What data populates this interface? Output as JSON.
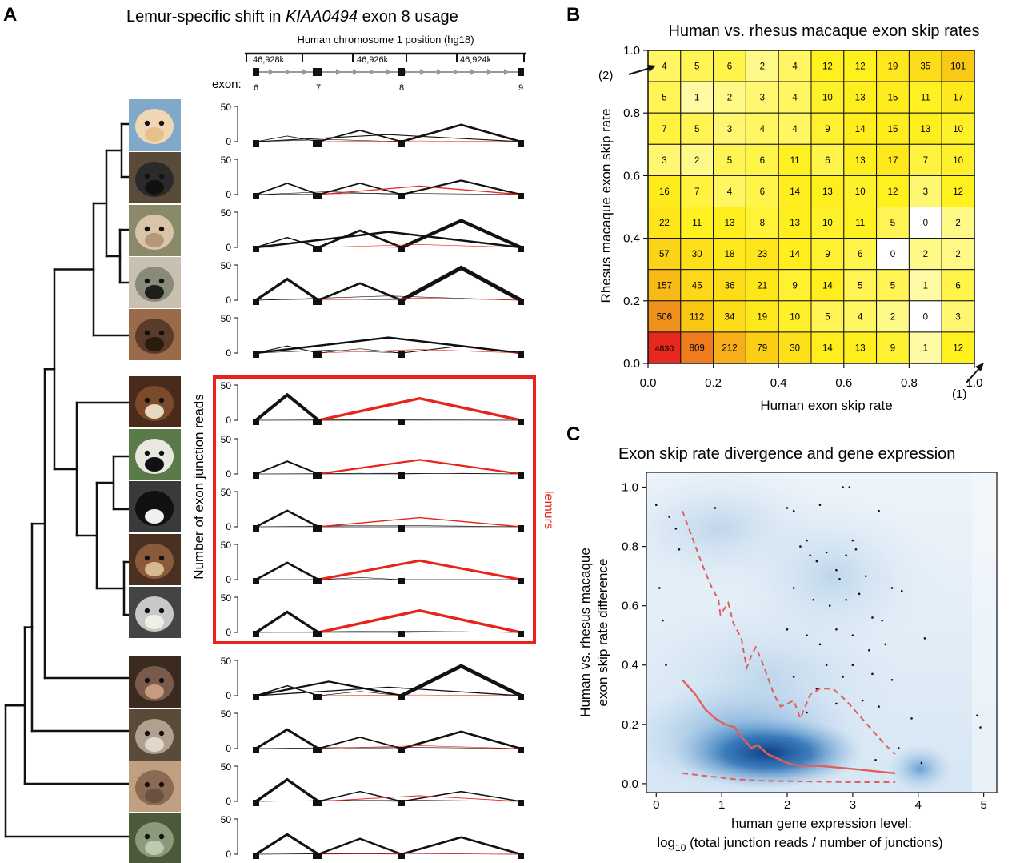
{
  "panel_a": {
    "letter": "A",
    "title_prefix": "Lemur-specific shift in ",
    "title_gene": "KIAA0494",
    "title_suffix": " exon 8 usage",
    "chrom_label": "Human chromosome 1 position (hg18)",
    "chrom_ticks": [
      "46,928k",
      "46,926k",
      "46,924k"
    ],
    "exon_prefix": "exon:",
    "exons": [
      "6",
      "7",
      "8",
      "9"
    ],
    "y_axis_label": "Number of exon junction reads",
    "y_ticks": [
      "0",
      "50"
    ],
    "lemurs_label": "lemurs",
    "species": [
      {
        "name": "human",
        "j67": 8,
        "j78": 16,
        "j89": 24,
        "j69": 10,
        "j68": 3,
        "j79": 1,
        "lemur": false
      },
      {
        "name": "chimpanzee",
        "j67": 16,
        "j78": 16,
        "j89": 20,
        "j69": 2,
        "j68": 4,
        "j79": 12,
        "lemur": false
      },
      {
        "name": "rhesus-macaque",
        "j67": 14,
        "j78": 24,
        "j89": 38,
        "j69": 22,
        "j68": 1,
        "j79": 4,
        "lemur": false
      },
      {
        "name": "vervet",
        "j67": 30,
        "j78": 24,
        "j89": 46,
        "j69": 6,
        "j68": 2,
        "j79": 3,
        "lemur": false
      },
      {
        "name": "marmoset",
        "j67": 10,
        "j78": 6,
        "j89": 10,
        "j69": 22,
        "j68": 4,
        "j79": 5,
        "lemur": false
      },
      {
        "name": "mouse-lemur",
        "j67": 36,
        "j78": 0,
        "j89": 0,
        "j69": 1,
        "j68": 0,
        "j79": 31,
        "lemur": true
      },
      {
        "name": "ruffed-lemur",
        "j67": 18,
        "j78": 1,
        "j89": 1,
        "j69": 1,
        "j68": 0,
        "j79": 20,
        "lemur": true
      },
      {
        "name": "black-white-ruffed-lemur",
        "j67": 23,
        "j78": 0,
        "j89": 0,
        "j69": 2,
        "j68": 0,
        "j79": 13,
        "lemur": true
      },
      {
        "name": "brown-lemur",
        "j67": 24,
        "j78": 3,
        "j89": 0,
        "j69": 0,
        "j68": 0,
        "j79": 27,
        "lemur": true
      },
      {
        "name": "ring-tailed-lemur",
        "j67": 29,
        "j78": 1,
        "j89": 1,
        "j69": 2,
        "j68": 0,
        "j79": 31,
        "lemur": true
      },
      {
        "name": "tree-shrew",
        "j67": 14,
        "j78": 6,
        "j89": 42,
        "j69": 12,
        "j68": 20,
        "j79": 1,
        "lemur": false
      },
      {
        "name": "mouse",
        "j67": 27,
        "j78": 16,
        "j89": 24,
        "j69": 2,
        "j68": 1,
        "j79": 4,
        "lemur": false
      },
      {
        "name": "armadillo",
        "j67": 31,
        "j78": 14,
        "j89": 14,
        "j69": 2,
        "j68": 1,
        "j79": 8,
        "lemur": false
      },
      {
        "name": "opossum",
        "j67": 28,
        "j78": 22,
        "j89": 24,
        "j69": 1,
        "j68": 1,
        "j79": 1,
        "lemur": false
      }
    ]
  },
  "panel_b": {
    "letter": "B",
    "title": "Human vs. rhesus macaque exon skip rates",
    "xlabel": "Human exon skip rate",
    "ylabel": "Rhesus macaque exon skip rate",
    "x_ticks": [
      "0.0",
      "0.2",
      "0.4",
      "0.6",
      "0.8",
      "1.0"
    ],
    "y_ticks": [
      "0.0",
      "0.2",
      "0.4",
      "0.6",
      "0.8",
      "1.0"
    ],
    "annot_1": "(1)",
    "annot_2": "(2)"
  },
  "panel_c": {
    "letter": "C",
    "title": "Exon skip rate divergence and gene expression",
    "xlabel_line1": "human gene expression level:",
    "xlabel_line2_a": "log",
    "xlabel_line2_sub": "10",
    "xlabel_line2_b": " (total junction reads / number of junctions)",
    "ylabel_line1": "Human vs. rhesus macaque",
    "ylabel_line2": "exon skip rate difference",
    "x_ticks": [
      "0",
      "1",
      "2",
      "3",
      "4",
      "5"
    ],
    "y_ticks": [
      "0.0",
      "0.2",
      "0.4",
      "0.6",
      "0.8",
      "1.0"
    ]
  },
  "chart_data": [
    {
      "type": "heatmap",
      "title": "Human vs. rhesus macaque exon skip rates",
      "xlabel": "Human exon skip rate",
      "ylabel": "Rhesus macaque exon skip rate",
      "xlim": [
        0,
        1
      ],
      "ylim": [
        0,
        1
      ],
      "bin_width": 0.1,
      "rows_top_to_bottom": [
        [
          4,
          5,
          6,
          2,
          4,
          12,
          12,
          19,
          35,
          101
        ],
        [
          5,
          1,
          2,
          3,
          4,
          10,
          13,
          15,
          11,
          17
        ],
        [
          7,
          5,
          3,
          4,
          4,
          9,
          14,
          15,
          13,
          10
        ],
        [
          3,
          2,
          5,
          6,
          11,
          6,
          13,
          17,
          7,
          10
        ],
        [
          16,
          7,
          4,
          6,
          14,
          13,
          10,
          12,
          3,
          12
        ],
        [
          22,
          11,
          13,
          8,
          13,
          10,
          11,
          5,
          0,
          2
        ],
        [
          57,
          30,
          18,
          23,
          14,
          9,
          6,
          0,
          2,
          2
        ],
        [
          157,
          45,
          36,
          21,
          9,
          14,
          5,
          5,
          1,
          6
        ],
        [
          506,
          112,
          34,
          19,
          10,
          5,
          4,
          2,
          0,
          3
        ],
        [
          4830,
          809,
          212,
          79,
          30,
          14,
          13,
          9,
          1,
          12
        ]
      ]
    },
    {
      "type": "scatter",
      "title": "Exon skip rate divergence and gene expression",
      "xlim": [
        -0.15,
        5.2
      ],
      "ylim": [
        -0.03,
        1.05
      ],
      "median_line": [
        [
          0.4,
          0.35
        ],
        [
          0.6,
          0.3
        ],
        [
          0.75,
          0.25
        ],
        [
          0.9,
          0.22
        ],
        [
          1.05,
          0.2
        ],
        [
          1.2,
          0.19
        ],
        [
          1.3,
          0.16
        ],
        [
          1.45,
          0.12
        ],
        [
          1.55,
          0.13
        ],
        [
          1.7,
          0.1
        ],
        [
          2.0,
          0.07
        ],
        [
          2.2,
          0.06
        ],
        [
          2.5,
          0.06
        ],
        [
          3.0,
          0.05
        ],
        [
          3.65,
          0.035
        ]
      ],
      "upper_quantile_line": [
        [
          0.4,
          0.92
        ],
        [
          0.55,
          0.83
        ],
        [
          0.7,
          0.74
        ],
        [
          0.85,
          0.66
        ],
        [
          0.95,
          0.62
        ],
        [
          0.98,
          0.57
        ],
        [
          1.1,
          0.61
        ],
        [
          1.18,
          0.54
        ],
        [
          1.3,
          0.49
        ],
        [
          1.38,
          0.39
        ],
        [
          1.45,
          0.43
        ],
        [
          1.52,
          0.46
        ],
        [
          1.6,
          0.42
        ],
        [
          1.7,
          0.36
        ],
        [
          1.8,
          0.3
        ],
        [
          1.9,
          0.26
        ],
        [
          2.0,
          0.27
        ],
        [
          2.1,
          0.28
        ],
        [
          2.2,
          0.22
        ],
        [
          2.35,
          0.3
        ],
        [
          2.5,
          0.32
        ],
        [
          2.7,
          0.32
        ],
        [
          2.9,
          0.28
        ],
        [
          3.1,
          0.23
        ],
        [
          3.3,
          0.18
        ],
        [
          3.5,
          0.13
        ],
        [
          3.65,
          0.1
        ]
      ],
      "lower_quantile_line": [
        [
          0.4,
          0.035
        ],
        [
          0.8,
          0.025
        ],
        [
          1.2,
          0.015
        ],
        [
          1.6,
          0.01
        ],
        [
          2.2,
          0.008
        ],
        [
          3.0,
          0.005
        ],
        [
          3.65,
          0.005
        ]
      ],
      "points": [
        [
          0.0,
          0.94
        ],
        [
          0.05,
          0.66
        ],
        [
          0.1,
          0.55
        ],
        [
          0.2,
          0.9
        ],
        [
          0.3,
          0.86
        ],
        [
          0.35,
          0.79
        ],
        [
          0.15,
          0.4
        ],
        [
          0.9,
          0.93
        ],
        [
          2.0,
          0.93
        ],
        [
          2.1,
          0.92
        ],
        [
          2.5,
          0.94
        ],
        [
          2.85,
          1.0
        ],
        [
          2.95,
          1.0
        ],
        [
          3.4,
          0.92
        ],
        [
          2.2,
          0.8
        ],
        [
          2.3,
          0.82
        ],
        [
          2.35,
          0.77
        ],
        [
          2.45,
          0.75
        ],
        [
          2.6,
          0.78
        ],
        [
          2.75,
          0.72
        ],
        [
          2.8,
          0.69
        ],
        [
          2.9,
          0.77
        ],
        [
          3.0,
          0.82
        ],
        [
          3.05,
          0.79
        ],
        [
          3.2,
          0.7
        ],
        [
          2.1,
          0.66
        ],
        [
          2.4,
          0.62
        ],
        [
          2.65,
          0.6
        ],
        [
          2.9,
          0.62
        ],
        [
          3.1,
          0.64
        ],
        [
          3.3,
          0.56
        ],
        [
          3.45,
          0.55
        ],
        [
          3.6,
          0.66
        ],
        [
          3.75,
          0.65
        ],
        [
          2.0,
          0.52
        ],
        [
          2.3,
          0.5
        ],
        [
          2.5,
          0.47
        ],
        [
          2.75,
          0.52
        ],
        [
          3.0,
          0.5
        ],
        [
          3.25,
          0.45
        ],
        [
          3.5,
          0.47
        ],
        [
          4.1,
          0.49
        ],
        [
          2.1,
          0.36
        ],
        [
          2.45,
          0.32
        ],
        [
          2.6,
          0.4
        ],
        [
          2.85,
          0.36
        ],
        [
          3.0,
          0.4
        ],
        [
          3.3,
          0.37
        ],
        [
          3.6,
          0.35
        ],
        [
          2.3,
          0.24
        ],
        [
          2.75,
          0.27
        ],
        [
          3.15,
          0.28
        ],
        [
          3.4,
          0.26
        ],
        [
          3.9,
          0.22
        ],
        [
          4.9,
          0.23
        ],
        [
          4.95,
          0.19
        ],
        [
          3.7,
          0.12
        ],
        [
          3.35,
          0.08
        ],
        [
          4.05,
          0.07
        ]
      ]
    }
  ]
}
